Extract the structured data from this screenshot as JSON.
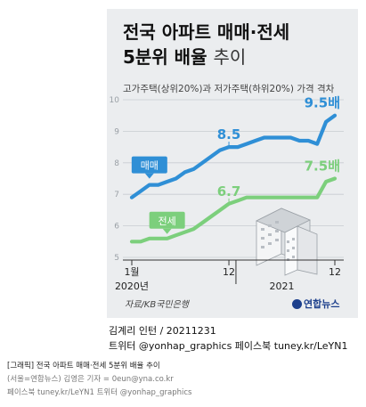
{
  "header": {
    "title_line1": "전국 아파트 매매·전세",
    "title_line2_bold": "5분위 배율",
    "title_line2_light": "추이",
    "subtitle": "고가주택(상위20%)과 저가주택(하위20%) 가격 격차"
  },
  "source": "자료/KB국민은행",
  "logo_text": "연합뉴스",
  "byline": {
    "line1": "김계리 인턴 / 20211231",
    "line2": "트위터 @yonhap_graphics  페이스북 tuney.kr/LeYN1"
  },
  "caption": {
    "line1": "[그래픽] 전국 아파트 매매·전세 5분위 배율 추이",
    "line2": "(서울=연합뉴스) 김영은 기자 = 0eun@yna.co.kr",
    "line3": "페이스북 tuney.kr/LeYN1 트위터 @yonhap_graphics"
  },
  "colors": {
    "sale": "#2f8fd6",
    "jeonse": "#7ccf7c",
    "grid": "#c8ccd1",
    "background": "#ebedef"
  },
  "chart_data": {
    "type": "line",
    "x_months": [
      "2020-01",
      "2020-02",
      "2020-03",
      "2020-04",
      "2020-05",
      "2020-06",
      "2020-07",
      "2020-08",
      "2020-09",
      "2020-10",
      "2020-11",
      "2020-12",
      "2021-01",
      "2021-02",
      "2021-03",
      "2021-04",
      "2021-05",
      "2021-06",
      "2021-07",
      "2021-08",
      "2021-09",
      "2021-10",
      "2021-11",
      "2021-12"
    ],
    "x_tick_labels": [
      {
        "month": "2020-01",
        "label": "1월"
      },
      {
        "month": "2020-12",
        "label": "12"
      },
      {
        "month": "2021-12",
        "label": "12"
      }
    ],
    "year_labels": [
      {
        "month": "2020-01",
        "label": "2020년"
      },
      {
        "month": "2021-06",
        "label": "2021"
      }
    ],
    "ylim": [
      5,
      10
    ],
    "y_ticks": [
      5,
      6,
      7,
      8,
      9,
      10
    ],
    "series": [
      {
        "key": "sale",
        "name": "매매",
        "values": [
          6.9,
          7.1,
          7.3,
          7.3,
          7.4,
          7.5,
          7.7,
          7.8,
          8.0,
          8.2,
          8.4,
          8.5,
          8.5,
          8.6,
          8.7,
          8.8,
          8.8,
          8.8,
          8.8,
          8.7,
          8.7,
          8.6,
          9.3,
          9.5
        ],
        "annotations": [
          {
            "month": "2020-12",
            "text": "8.5"
          },
          {
            "month": "2021-12",
            "text": "9.5배"
          }
        ]
      },
      {
        "key": "jeonse",
        "name": "전세",
        "values": [
          5.5,
          5.5,
          5.6,
          5.6,
          5.6,
          5.7,
          5.8,
          5.9,
          6.1,
          6.3,
          6.5,
          6.7,
          6.8,
          6.9,
          6.9,
          6.9,
          6.9,
          6.9,
          6.9,
          6.9,
          6.9,
          6.9,
          7.4,
          7.5
        ],
        "annotations": [
          {
            "month": "2020-12",
            "text": "6.7"
          },
          {
            "month": "2021-12",
            "text": "7.5배"
          }
        ]
      }
    ]
  }
}
